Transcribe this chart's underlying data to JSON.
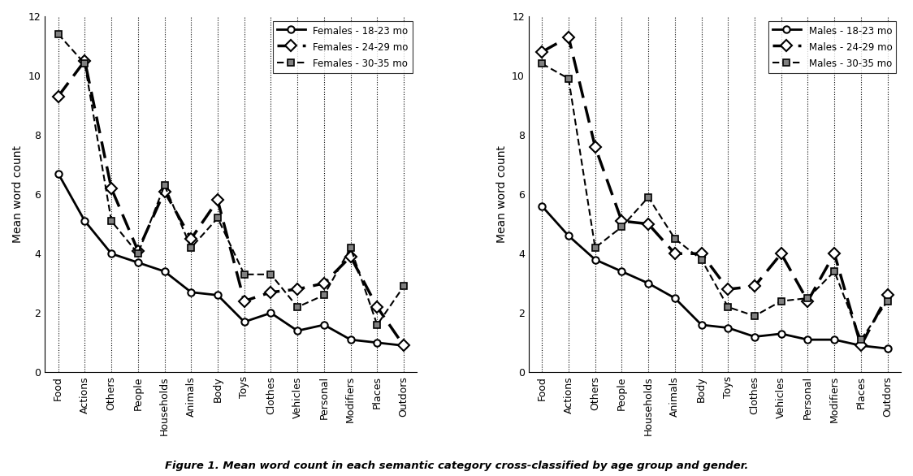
{
  "categories": [
    "Food",
    "Actions",
    "Others",
    "People",
    "Households",
    "Animals",
    "Body",
    "Toys",
    "Clothes",
    "Vehicles",
    "Personal",
    "Modifiers",
    "Places",
    "Outdors"
  ],
  "females": {
    "18_23": [
      6.7,
      5.1,
      4.0,
      3.7,
      3.4,
      2.7,
      2.6,
      1.7,
      2.0,
      1.4,
      1.6,
      1.1,
      1.0,
      0.9
    ],
    "24_29": [
      9.3,
      10.5,
      6.2,
      4.1,
      6.1,
      4.5,
      5.8,
      2.4,
      2.7,
      2.8,
      3.0,
      3.9,
      2.2,
      0.9
    ],
    "30_35": [
      11.4,
      10.4,
      5.1,
      4.0,
      6.3,
      4.2,
      5.2,
      3.3,
      3.3,
      2.2,
      2.6,
      4.2,
      1.6,
      2.9
    ]
  },
  "males": {
    "18_23": [
      5.6,
      4.6,
      3.8,
      3.4,
      3.0,
      2.5,
      1.6,
      1.5,
      1.2,
      1.3,
      1.1,
      1.1,
      0.9,
      0.8
    ],
    "24_29": [
      10.8,
      11.3,
      7.6,
      5.1,
      5.0,
      4.0,
      4.0,
      2.8,
      2.9,
      4.0,
      2.4,
      4.0,
      0.9,
      2.6
    ],
    "30_35": [
      10.4,
      9.9,
      4.2,
      4.9,
      5.9,
      4.5,
      3.8,
      2.2,
      1.9,
      2.4,
      2.5,
      3.4,
      1.1,
      2.4
    ]
  },
  "ylabel": "Mean word count",
  "ylim": [
    0,
    12
  ],
  "yticks": [
    0,
    2,
    4,
    6,
    8,
    10,
    12
  ],
  "legend_females": [
    "Females - 18-23 mo",
    "Females - 24-29 mo",
    "Females - 30-35 mo"
  ],
  "legend_males": [
    "Males - 18-23 mo",
    "Males - 24-29 mo",
    "Males - 30-35 mo"
  ],
  "caption": "Figure 1. Mean word count in each semantic category cross-classified by age group and gender.",
  "line_color": "#000000",
  "bg_color": "#ffffff"
}
